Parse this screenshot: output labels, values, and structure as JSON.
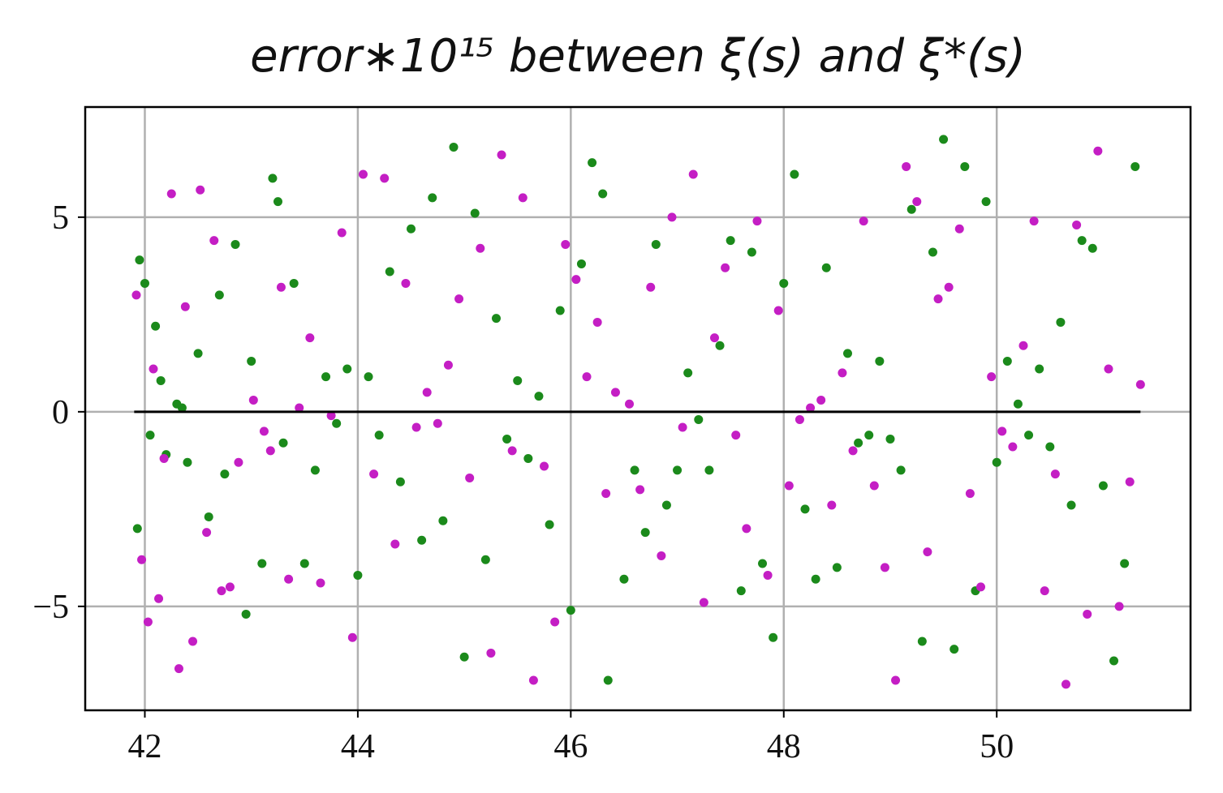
{
  "chart_data": {
    "type": "scatter",
    "title": "error∗10¹⁵ between ξ(s) and ξ*(s)",
    "xlim": [
      41.44,
      51.82
    ],
    "ylim": [
      -7.67,
      7.83
    ],
    "xticks": [
      42,
      44,
      46,
      48,
      50
    ],
    "yticks": [
      {
        "value": -5,
        "label": "−5"
      },
      0,
      5
    ],
    "grid": true,
    "hline": {
      "y": 0,
      "x": [
        41.9,
        51.35
      ],
      "color": "#000000"
    },
    "series": [
      {
        "color": "#1b8a1b",
        "x": [
          41.93,
          41.95,
          42.0,
          42.05,
          42.1,
          42.15,
          42.2,
          42.3,
          42.35,
          42.4,
          42.5,
          42.6,
          42.7,
          42.75,
          42.85,
          42.95,
          43.0,
          43.1,
          43.2,
          43.25,
          43.3,
          43.4,
          43.5,
          43.6,
          43.7,
          43.8,
          43.9,
          44.0,
          44.1,
          44.2,
          44.3,
          44.4,
          44.5,
          44.6,
          44.7,
          44.8,
          44.9,
          45.0,
          45.1,
          45.2,
          45.3,
          45.4,
          45.5,
          45.6,
          45.7,
          45.8,
          45.9,
          46.0,
          46.1,
          46.2,
          46.3,
          46.35,
          46.5,
          46.6,
          46.7,
          46.8,
          46.9,
          47.0,
          47.1,
          47.2,
          47.3,
          47.4,
          47.5,
          47.6,
          47.7,
          47.8,
          47.9,
          48.0,
          48.1,
          48.2,
          48.3,
          48.4,
          48.5,
          48.6,
          48.7,
          48.8,
          48.9,
          49.0,
          49.1,
          49.2,
          49.3,
          49.4,
          49.5,
          49.6,
          49.7,
          49.8,
          49.9,
          50.0,
          50.1,
          50.2,
          50.3,
          50.4,
          50.5,
          50.6,
          50.7,
          50.8,
          50.9,
          51.0,
          51.1,
          51.2,
          51.3
        ],
        "y": [
          -3.0,
          3.9,
          3.3,
          -0.6,
          2.2,
          0.8,
          -1.1,
          0.2,
          0.1,
          -1.3,
          1.5,
          -2.7,
          3.0,
          -1.6,
          4.3,
          -5.2,
          1.3,
          -3.9,
          6.0,
          5.4,
          -0.8,
          3.3,
          -3.9,
          -1.5,
          0.9,
          -0.3,
          1.1,
          -4.2,
          0.9,
          -0.6,
          3.6,
          -1.8,
          4.7,
          -3.3,
          5.5,
          -2.8,
          6.8,
          -6.3,
          5.1,
          -3.8,
          2.4,
          -0.7,
          0.8,
          -1.2,
          0.4,
          -2.9,
          2.6,
          -5.1,
          3.8,
          6.4,
          5.6,
          -6.9,
          -4.3,
          -1.5,
          -3.1,
          4.3,
          -2.4,
          -1.5,
          1.0,
          -0.2,
          -1.5,
          1.7,
          4.4,
          -4.6,
          4.1,
          -3.9,
          -5.8,
          3.3,
          6.1,
          -2.5,
          -4.3,
          3.7,
          -4.0,
          1.5,
          -0.8,
          -0.6,
          1.3,
          -0.7,
          -1.5,
          5.2,
          -5.9,
          4.1,
          7.0,
          -6.1,
          6.3,
          -4.6,
          5.4,
          -1.3,
          1.3,
          0.2,
          -0.6,
          1.1,
          -0.9,
          2.3,
          -2.4,
          4.4,
          4.2,
          -1.9,
          -6.4,
          -3.9,
          6.3
        ]
      },
      {
        "color": "#c41ec4",
        "x": [
          41.92,
          41.97,
          42.03,
          42.08,
          42.13,
          42.18,
          42.25,
          42.32,
          42.38,
          42.45,
          42.52,
          42.58,
          42.65,
          42.72,
          42.8,
          42.88,
          43.02,
          43.12,
          43.18,
          43.28,
          43.35,
          43.45,
          43.55,
          43.65,
          43.75,
          43.85,
          43.95,
          44.05,
          44.15,
          44.25,
          44.35,
          44.45,
          44.55,
          44.65,
          44.75,
          44.85,
          44.95,
          45.05,
          45.15,
          45.25,
          45.35,
          45.45,
          45.55,
          45.65,
          45.75,
          45.85,
          45.95,
          46.05,
          46.15,
          46.25,
          46.33,
          46.42,
          46.55,
          46.65,
          46.75,
          46.85,
          46.95,
          47.05,
          47.15,
          47.25,
          47.35,
          47.45,
          47.55,
          47.65,
          47.75,
          47.85,
          47.95,
          48.05,
          48.15,
          48.25,
          48.35,
          48.45,
          48.55,
          48.65,
          48.75,
          48.85,
          48.95,
          49.05,
          49.15,
          49.25,
          49.35,
          49.45,
          49.55,
          49.65,
          49.75,
          49.85,
          49.95,
          50.05,
          50.15,
          50.25,
          50.35,
          50.45,
          50.55,
          50.65,
          50.75,
          50.85,
          50.95,
          51.05,
          51.15,
          51.25,
          51.35
        ],
        "y": [
          3.0,
          -3.8,
          -5.4,
          1.1,
          -4.8,
          -1.2,
          5.6,
          -6.6,
          2.7,
          -5.9,
          5.7,
          -3.1,
          4.4,
          -4.6,
          -4.5,
          -1.3,
          0.3,
          -0.5,
          -1.0,
          3.2,
          -4.3,
          0.1,
          1.9,
          -4.4,
          -0.1,
          4.6,
          -5.8,
          6.1,
          -1.6,
          6.0,
          -3.4,
          3.3,
          -0.4,
          0.5,
          -0.3,
          1.2,
          2.9,
          -1.7,
          4.2,
          -6.2,
          6.6,
          -1.0,
          5.5,
          -6.9,
          -1.4,
          -5.4,
          4.3,
          3.4,
          0.9,
          2.3,
          -2.1,
          0.5,
          0.2,
          -2.0,
          3.2,
          -3.7,
          5.0,
          -0.4,
          6.1,
          -4.9,
          1.9,
          3.7,
          -0.6,
          -3.0,
          4.9,
          -4.2,
          2.6,
          -1.9,
          -0.2,
          0.1,
          0.3,
          -2.4,
          1.0,
          -1.0,
          4.9,
          -1.9,
          -4.0,
          -6.9,
          6.3,
          5.4,
          -3.6,
          2.9,
          3.2,
          4.7,
          -2.1,
          -4.5,
          0.9,
          -0.5,
          -0.9,
          1.7,
          4.9,
          -4.6,
          -1.6,
          -7.0,
          4.8,
          -5.2,
          6.7,
          1.1,
          -5.0,
          -1.8,
          0.7
        ]
      }
    ]
  }
}
